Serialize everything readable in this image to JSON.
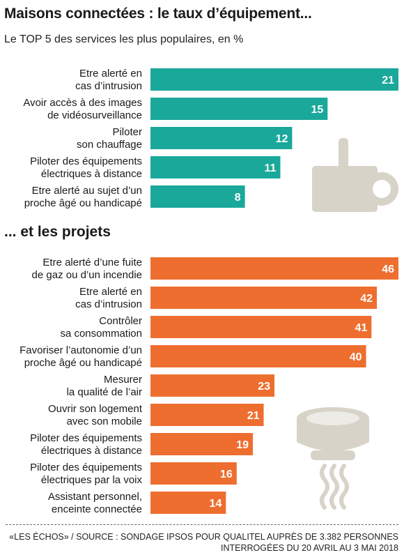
{
  "title": "Maisons connectées : le taux d’équipement...",
  "subtitle": "Le TOP 5 des services les plus populaires, en %",
  "section2_title": "... et les projets",
  "colors": {
    "equipment": "#1aa89a",
    "projects": "#ee6e2f",
    "icon": "#d8d3c8"
  },
  "icons": [
    "camera-icon",
    "smoke-detector-icon"
  ],
  "source_line1": "«LES ÉCHOS» / SOURCE : SONDAGE IPSOS POUR QUALITEL AUPRÈS DE 3.382 PERSONNES",
  "source_line2": "INTERROGÉES DU 20 AVRIL AU 3 MAI 2018",
  "chart_data": [
    {
      "type": "bar",
      "orientation": "horizontal",
      "title": "Maisons connectées : le taux d’équipement...",
      "subtitle": "Le TOP 5 des services les plus populaires, en %",
      "categories": [
        [
          "Etre alerté en",
          "cas d’intrusion"
        ],
        [
          "Avoir accès à des images",
          "de vidéosurveillance"
        ],
        [
          "Piloter",
          "son chauffage"
        ],
        [
          "Piloter des équipements",
          "électriques à distance"
        ],
        [
          "Etre alerté au sujet d’un",
          "proche âgé ou handicapé"
        ]
      ],
      "values": [
        21,
        15,
        12,
        11,
        8
      ],
      "xlim": [
        0,
        21
      ]
    },
    {
      "type": "bar",
      "orientation": "horizontal",
      "title": "... et les projets",
      "categories": [
        [
          "Etre alerté d’une fuite",
          "de gaz ou d’un incendie"
        ],
        [
          "Etre alerté en",
          "cas d’intrusion"
        ],
        [
          "Contrôler",
          "sa consommation"
        ],
        [
          "Favoriser l’autonomie d’un",
          "proche âgé ou handicapé"
        ],
        [
          "Mesurer",
          "la qualité de l’air"
        ],
        [
          "Ouvrir son logement",
          "avec son mobile"
        ],
        [
          "Piloter des équipements",
          "électriques à distance"
        ],
        [
          "Piloter des équipements",
          "électriques par la voix"
        ],
        [
          "Assistant personnel,",
          "enceinte connectée"
        ]
      ],
      "values": [
        46,
        42,
        41,
        40,
        23,
        21,
        19,
        16,
        14
      ],
      "xlim": [
        0,
        46
      ]
    }
  ]
}
